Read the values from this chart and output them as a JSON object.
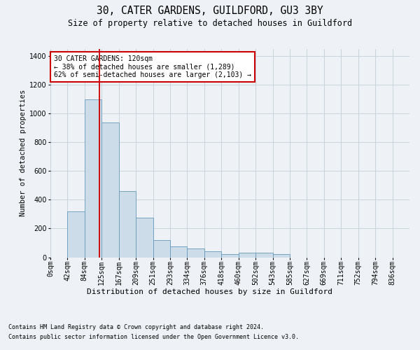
{
  "title1": "30, CATER GARDENS, GUILDFORD, GU3 3BY",
  "title2": "Size of property relative to detached houses in Guildford",
  "xlabel": "Distribution of detached houses by size in Guildford",
  "ylabel": "Number of detached properties",
  "footer1": "Contains HM Land Registry data © Crown copyright and database right 2024.",
  "footer2": "Contains public sector information licensed under the Open Government Licence v3.0.",
  "bin_labels": [
    "0sqm",
    "42sqm",
    "84sqm",
    "125sqm",
    "167sqm",
    "209sqm",
    "251sqm",
    "293sqm",
    "334sqm",
    "376sqm",
    "418sqm",
    "460sqm",
    "502sqm",
    "543sqm",
    "585sqm",
    "627sqm",
    "669sqm",
    "711sqm",
    "752sqm",
    "794sqm",
    "836sqm"
  ],
  "bar_values": [
    0,
    320,
    1100,
    940,
    460,
    275,
    120,
    75,
    60,
    40,
    20,
    30,
    30,
    20,
    0,
    0,
    0,
    0,
    0,
    0,
    0
  ],
  "bar_color": "#ccdce8",
  "bar_edge_color": "#6699bb",
  "grid_color": "#c8d4dc",
  "annotation_text": "30 CATER GARDENS: 120sqm\n← 38% of detached houses are smaller (1,289)\n62% of semi-detached houses are larger (2,103) →",
  "annotation_box_color": "#ffffff",
  "annotation_edge_color": "#cc0000",
  "vline_color": "#cc0000",
  "ylim": [
    0,
    1450
  ],
  "yticks": [
    0,
    200,
    400,
    600,
    800,
    1000,
    1200,
    1400
  ],
  "background_color": "#eef2f6",
  "axes_background": "#eef2f6",
  "title1_fontsize": 10.5,
  "title2_fontsize": 8.5,
  "xlabel_fontsize": 8,
  "ylabel_fontsize": 7.5,
  "tick_fontsize": 7,
  "footer_fontsize": 6,
  "annot_fontsize": 7
}
